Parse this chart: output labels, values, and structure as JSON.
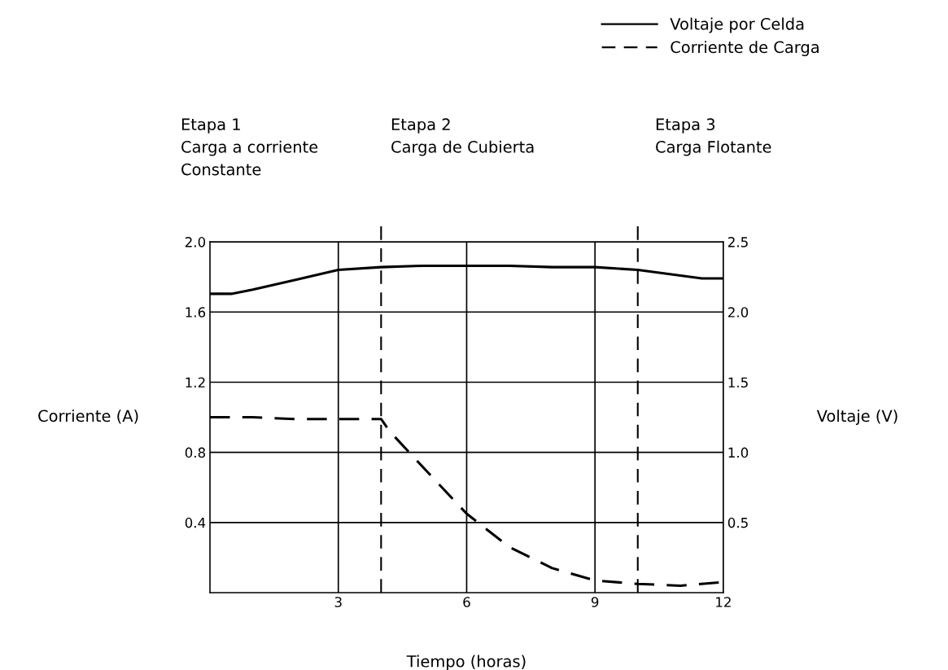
{
  "chart_data": {
    "type": "line",
    "xlabel": "Tiempo (horas)",
    "ylabel": "Corriente (A)",
    "y2label": "Voltaje (V)",
    "series": [
      {
        "name": "Voltaje por Celda",
        "color": "#000000",
        "line_style": "solid",
        "axis": "y2",
        "x": [
          0,
          0.5,
          1,
          2,
          3,
          4,
          5,
          6,
          7,
          8,
          9,
          10,
          11,
          11.5,
          12
        ],
        "values": [
          2.13,
          2.13,
          2.16,
          2.23,
          2.3,
          2.32,
          2.33,
          2.33,
          2.33,
          2.32,
          2.32,
          2.3,
          2.26,
          2.24,
          2.24
        ]
      },
      {
        "name": "Corriente de Carga",
        "color": "#000000",
        "line_style": "dashed",
        "x": [
          0,
          1,
          2,
          3,
          4,
          4.2,
          5,
          6,
          7,
          8,
          9,
          10,
          11,
          12
        ],
        "values": [
          1.0,
          1.0,
          0.99,
          0.99,
          0.99,
          0.92,
          0.71,
          0.45,
          0.26,
          0.14,
          0.07,
          0.05,
          0.04,
          0.06
        ]
      }
    ],
    "xlim": [
      0,
      12
    ],
    "xticks": [
      3,
      6,
      9,
      12
    ],
    "ylim": [
      0,
      2.0
    ],
    "yticks": [
      0.4,
      0.8,
      1.2,
      1.6,
      {
        "value": 2.0,
        "label": "2.0"
      }
    ],
    "y2lim": [
      0,
      2.5
    ],
    "y2ticks": [
      0.5,
      {
        "value": 1.0,
        "label": "1.0"
      },
      1.5,
      {
        "value": 2.0,
        "label": "2.0"
      },
      2.5
    ],
    "ref_lines": [
      {
        "axis": "x",
        "value": 4,
        "line_style": "dashed",
        "color": "#000000"
      },
      {
        "axis": "x",
        "value": 10,
        "line_style": "dashed",
        "color": "#000000"
      }
    ],
    "annotations": [
      "Etapa 1\nCarga a corriente\nConstante",
      "Etapa 2\nCarga de Cubierta",
      "Etapa 3\nCarga Flotante"
    ],
    "grid": true,
    "legend": "top right"
  }
}
